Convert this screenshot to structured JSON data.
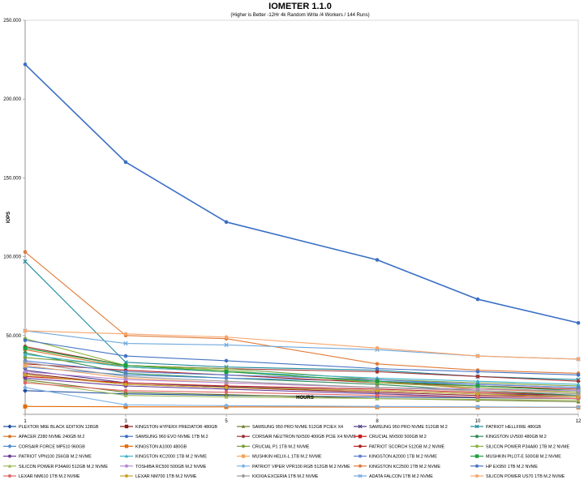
{
  "chart_data": {
    "type": "line",
    "title": "IOMETER 1.1.0",
    "subtitle": "(Higher is Better -12Hr 4k Random Write /4 Workers / 144 Runs)",
    "xlabel": "HOURS",
    "ylabel": "IOPS",
    "x": [
      1,
      3,
      5,
      8,
      10,
      12
    ],
    "x_tick_labels": [
      "1",
      "3",
      "5",
      "8",
      "10",
      "12"
    ],
    "ylim": [
      0,
      250000
    ],
    "y_tick_values": [
      0,
      50000,
      100000,
      150000,
      200000,
      250000
    ],
    "y_tick_labels": [
      "",
      "50.000",
      "100.000",
      "150.000",
      "200.000",
      "250.000"
    ],
    "grid": false,
    "legend_position": "bottom",
    "series": [
      {
        "name": "PLEXTOR M6E BLACK EDITION 128GB",
        "color": "#1F4E9C",
        "marker": "diamond",
        "values": [
          15000,
          13000,
          12000,
          11000,
          10500,
          10000
        ]
      },
      {
        "name": "KINGSTON HYPERX PREDATOR 480GB",
        "color": "#8B1A1A",
        "marker": "square",
        "values": [
          26000,
          19000,
          17000,
          14000,
          12000,
          11000
        ]
      },
      {
        "name": "SAMSUNG 950 PRO NVME 512GB PCIEX X4",
        "color": "#6B7A2A",
        "marker": "triangle",
        "values": [
          22000,
          14000,
          12500,
          10000,
          9000,
          8000
        ]
      },
      {
        "name": "SAMSUNG 950 PRO NVME 512GB M.2",
        "color": "#4B3A7E",
        "marker": "x",
        "values": [
          28000,
          20000,
          17500,
          15000,
          13000,
          12000
        ]
      },
      {
        "name": "PATRIOT HELLFIRE 480GB",
        "color": "#1E8A9C",
        "marker": "x",
        "values": [
          97000,
          33000,
          30000,
          28000,
          24000,
          22000
        ]
      },
      {
        "name": "APACER Z280 NVME 240GB M.2",
        "color": "#D9762B",
        "marker": "circle",
        "values": [
          41000,
          30000,
          27000,
          21000,
          16000,
          14000
        ]
      },
      {
        "name": "SAMSUNG 960 EVO NVME 1TB M.2",
        "color": "#3A6FC4",
        "marker": "circle",
        "values": [
          222000,
          160000,
          122000,
          98000,
          73000,
          58000
        ]
      },
      {
        "name": "CORSAIR NEUTRON NX500 400GB PCIE X4 NVME",
        "color": "#A03232",
        "marker": "circle",
        "values": [
          43000,
          31000,
          29000,
          27000,
          24000,
          21000
        ]
      },
      {
        "name": "CRUCIAL MX500 500GB M.2",
        "color": "#C41E1E",
        "marker": "square",
        "values": [
          24000,
          20000,
          18000,
          16000,
          14000,
          12000
        ]
      },
      {
        "name": "KINGSTON UV500 480GB M.2",
        "color": "#2E8B57",
        "marker": "circle",
        "values": [
          39000,
          26000,
          23000,
          19000,
          15000,
          12000
        ]
      },
      {
        "name": "CORSAIR FORCE MP510 960GB",
        "color": "#4A8AD4",
        "marker": "diamond",
        "values": [
          30000,
          25000,
          23000,
          21000,
          19000,
          17000
        ]
      },
      {
        "name": "KINGSTON A1000 480GB",
        "color": "#E36C0A",
        "marker": "square",
        "values": [
          5000,
          4800,
          4700,
          4600,
          4500,
          4400
        ]
      },
      {
        "name": "CRUCIAL P1 1TB M.2 NVME",
        "color": "#7A9E3A",
        "marker": "circle",
        "values": [
          36000,
          31000,
          29000,
          22000,
          20000,
          18000
        ]
      },
      {
        "name": "PATRIOT SCORCH 512GB M.2 NVME",
        "color": "#B22222",
        "marker": "circle",
        "values": [
          32000,
          28000,
          25000,
          20000,
          18000,
          16000
        ]
      },
      {
        "name": "SILICON POWER P34A80 1TB M.2 NVME",
        "color": "#8DB43E",
        "marker": "circle",
        "values": [
          48000,
          31000,
          28000,
          20000,
          17000,
          14000
        ]
      },
      {
        "name": "PATRIOT VPN100 256GB M.2 NVME",
        "color": "#6A3D9A",
        "marker": "circle",
        "values": [
          23000,
          18000,
          16000,
          13000,
          11000,
          10000
        ]
      },
      {
        "name": "KINGSTON KC2000 1TB M.2 NVME",
        "color": "#3CB4C8",
        "marker": "triangle",
        "values": [
          38000,
          30000,
          27000,
          23000,
          21000,
          19000
        ]
      },
      {
        "name": "MUSHKIN HELIX-L 1TB M.2 NVME",
        "color": "#F4A460",
        "marker": "square",
        "values": [
          31000,
          23000,
          20000,
          17000,
          15000,
          13000
        ]
      },
      {
        "name": "KINGSTON A2000 1TB M.2 NVME",
        "color": "#5A7FCF",
        "marker": "circle",
        "values": [
          34000,
          27000,
          25000,
          22000,
          19000,
          17000
        ]
      },
      {
        "name": "MUSHKIN PILOT-E 500GB M.2 NVME",
        "color": "#1B9E3B",
        "marker": "square",
        "values": [
          42000,
          31000,
          27000,
          21000,
          18000,
          15000
        ]
      },
      {
        "name": "SILICON POWER P34A60 512GB M.2 NVME",
        "color": "#9BBB59",
        "marker": "triangle",
        "values": [
          21000,
          12000,
          11000,
          10000,
          9500,
          9000
        ]
      },
      {
        "name": "TOSHIBA RC500 500GB M.2 NVME",
        "color": "#B589D6",
        "marker": "circle",
        "values": [
          27000,
          22000,
          20000,
          17000,
          16000,
          15000
        ]
      },
      {
        "name": "PATRIOT VIPER VPR100 RGB 512GB M.2 NVME",
        "color": "#7FB2E5",
        "marker": "circle",
        "values": [
          17000,
          6000,
          5500,
          5000,
          4800,
          4500
        ]
      },
      {
        "name": "KINGSTON KC2500 1TB M.2 NVME",
        "color": "#E07B39",
        "marker": "circle",
        "values": [
          103000,
          50000,
          48000,
          32000,
          28000,
          26000
        ]
      },
      {
        "name": "HP EX950 1TB M.2 NVME",
        "color": "#4472C4",
        "marker": "circle",
        "values": [
          47000,
          37000,
          34000,
          29000,
          27000,
          25000
        ]
      },
      {
        "name": "LEXAR NM610 1TB M.2 NVME",
        "color": "#E06666",
        "marker": "circle",
        "values": [
          20000,
          15000,
          14000,
          12000,
          11000,
          10000
        ]
      },
      {
        "name": "LEXAR NM700 1TB M.2 NVME",
        "color": "#C9A227",
        "marker": "circle",
        "values": [
          25000,
          19000,
          17000,
          15000,
          13000,
          11000
        ]
      },
      {
        "name": "KIOXIA EXCERIA 1TB M.2 NVME",
        "color": "#999999",
        "marker": "diamond",
        "values": [
          33000,
          24000,
          21000,
          17000,
          15000,
          13000
        ]
      },
      {
        "name": "ADATA FALCON 1TB M.2 NVME",
        "color": "#6FA8DC",
        "marker": "x",
        "values": [
          53000,
          45000,
          44000,
          41000,
          37000,
          35000
        ]
      },
      {
        "name": "SILICON POWER US70 1TB M.2 NVME",
        "color": "#F9A56B",
        "marker": "circle",
        "values": [
          53000,
          51000,
          49000,
          42000,
          37000,
          35000
        ]
      }
    ]
  }
}
